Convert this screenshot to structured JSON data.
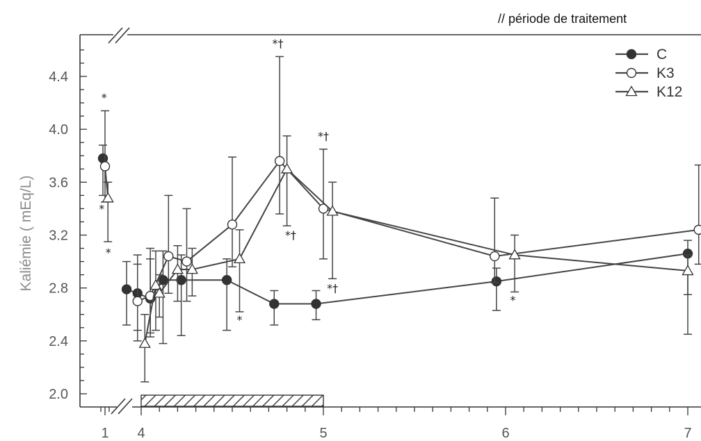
{
  "chart_data": {
    "type": "line",
    "title": "// période de traitement",
    "xlabel": "",
    "ylabel": "Kaliémie ( mEq/L)",
    "ylim": [
      2.0,
      4.6
    ],
    "y_ticks": [
      "2.0",
      "2.4",
      "2.8",
      "3.2",
      "3.6",
      "4.0",
      "4.4"
    ],
    "x_ticks": [
      "1",
      "4",
      "5",
      "6",
      "7"
    ],
    "axis_break": true,
    "treatment_period": [
      4,
      5
    ],
    "grid": false,
    "legend_position": "top-right",
    "colors": {
      "line": "#444444",
      "marker": "#333333"
    },
    "series": [
      {
        "name": "C",
        "marker": "filled-circle",
        "points": [
          {
            "x": 0.95,
            "y": 3.78,
            "err_up": 3.88,
            "err_down": 3.5
          },
          {
            "x": 3.92,
            "y": 2.79,
            "err_up": 3.0,
            "err_down": 2.52
          },
          {
            "x": 3.98,
            "y": 2.76,
            "err_up": 2.98,
            "err_down": 2.48
          },
          {
            "x": 4.05,
            "y": 2.72,
            "err_up": 3.02,
            "err_down": 2.43
          },
          {
            "x": 4.12,
            "y": 2.86,
            "err_up": 3.08,
            "err_down": 2.38
          },
          {
            "x": 4.22,
            "y": 2.86,
            "err_up": 3.05,
            "err_down": 2.44
          },
          {
            "x": 4.47,
            "y": 2.86,
            "err_up": 3.02,
            "err_down": 2.48
          },
          {
            "x": 4.73,
            "y": 2.68,
            "err_up": 2.78,
            "err_down": 2.52
          },
          {
            "x": 4.96,
            "y": 2.68,
            "err_up": 2.78,
            "err_down": 2.56
          },
          {
            "x": 5.95,
            "y": 2.85,
            "err_up": 2.95,
            "err_down": 2.63
          },
          {
            "x": 7.0,
            "y": 3.06,
            "err_up": 3.16,
            "err_down": 2.75
          }
        ]
      },
      {
        "name": "K3",
        "marker": "open-circle",
        "points": [
          {
            "x": 1.0,
            "y": 3.72,
            "err_up": 4.14,
            "err_down": 3.45
          },
          {
            "x": 3.98,
            "y": 2.7,
            "err_up": 3.05,
            "err_down": 2.4
          },
          {
            "x": 4.05,
            "y": 2.74,
            "err_up": 3.1,
            "err_down": 2.46
          },
          {
            "x": 4.15,
            "y": 3.04,
            "err_up": 3.5,
            "err_down": 2.76
          },
          {
            "x": 4.25,
            "y": 3.0,
            "err_up": 3.4,
            "err_down": 2.7
          },
          {
            "x": 4.5,
            "y": 3.28,
            "err_up": 3.79,
            "err_down": 2.96
          },
          {
            "x": 4.76,
            "y": 3.76,
            "err_up": 4.55,
            "err_down": 3.36
          },
          {
            "x": 5.0,
            "y": 3.4,
            "err_up": 3.85,
            "err_down": 3.02
          },
          {
            "x": 5.94,
            "y": 3.04,
            "err_up": 3.48,
            "err_down": 2.84
          },
          {
            "x": 7.06,
            "y": 3.24,
            "err_up": 3.73,
            "err_down": 2.98
          }
        ]
      },
      {
        "name": "K12",
        "marker": "open-triangle",
        "points": [
          {
            "x": 1.07,
            "y": 3.48,
            "err_up": 3.6,
            "err_down": 3.15
          },
          {
            "x": 4.02,
            "y": 2.38,
            "err_up": 2.6,
            "err_down": 2.09
          },
          {
            "x": 4.08,
            "y": 2.82,
            "err_up": 3.08,
            "err_down": 2.48
          },
          {
            "x": 4.1,
            "y": 2.76,
            "err_up": 2.9,
            "err_down": 2.58
          },
          {
            "x": 4.2,
            "y": 2.94,
            "err_up": 3.12,
            "err_down": 2.7
          },
          {
            "x": 4.28,
            "y": 2.94,
            "err_up": 3.1,
            "err_down": 2.74
          },
          {
            "x": 4.54,
            "y": 3.02,
            "err_up": 3.24,
            "err_down": 2.62
          },
          {
            "x": 4.8,
            "y": 3.7,
            "err_up": 3.95,
            "err_down": 3.27
          },
          {
            "x": 5.05,
            "y": 3.38,
            "err_up": 3.6,
            "err_down": 2.87
          },
          {
            "x": 6.05,
            "y": 3.05,
            "err_up": 3.2,
            "err_down": 2.77
          },
          {
            "x": 7.0,
            "y": 2.93,
            "err_up": 3.05,
            "err_down": 2.45
          }
        ]
      }
    ],
    "annotations": [
      {
        "text": "*",
        "x": 0.98,
        "y": 4.21
      },
      {
        "text": "*",
        "x": 0.92,
        "y": 3.37
      },
      {
        "text": "*",
        "x": 1.08,
        "y": 3.04
      },
      {
        "text": "*†",
        "x": 4.75,
        "y": 4.62
      },
      {
        "text": "*†",
        "x": 5.0,
        "y": 3.92
      },
      {
        "text": "*†",
        "x": 4.82,
        "y": 3.17
      },
      {
        "text": "*",
        "x": 4.54,
        "y": 2.53
      },
      {
        "text": "*†",
        "x": 5.05,
        "y": 2.77
      },
      {
        "text": "*",
        "x": 6.04,
        "y": 2.68
      }
    ]
  }
}
